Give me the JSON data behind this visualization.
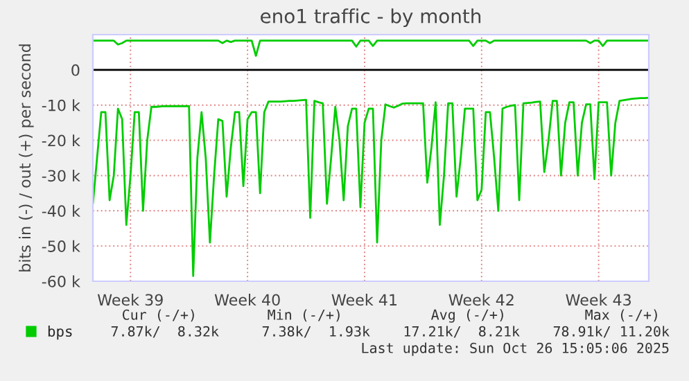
{
  "chart_data": {
    "type": "line",
    "title": "eno1 traffic - by month",
    "ylabel": "bits in (-) / out (+) per second",
    "categories": [
      null,
      null,
      null,
      null,
      null,
      null,
      null,
      null,
      null,
      "Week 39",
      null,
      null,
      null,
      null,
      null,
      null,
      null,
      null,
      null,
      null,
      null,
      null,
      null,
      null,
      null,
      null,
      null,
      null,
      null,
      null,
      null,
      null,
      null,
      null,
      null,
      null,
      null,
      "Week 40",
      null,
      null,
      null,
      null,
      null,
      null,
      null,
      null,
      null,
      null,
      null,
      null,
      null,
      null,
      null,
      null,
      null,
      null,
      null,
      null,
      null,
      null,
      null,
      null,
      null,
      null,
      null,
      "Week 41",
      null,
      null,
      null,
      null,
      null,
      null,
      null,
      null,
      null,
      null,
      null,
      null,
      null,
      null,
      null,
      null,
      null,
      null,
      null,
      null,
      null,
      null,
      null,
      null,
      null,
      null,
      null,
      "Week 42",
      null,
      null,
      null,
      null,
      null,
      null,
      null,
      null,
      null,
      null,
      null,
      null,
      null,
      null,
      null,
      null,
      null,
      null,
      null,
      null,
      null,
      null,
      null,
      null,
      null,
      null,
      null,
      "Week 43",
      null,
      null,
      null,
      null,
      null,
      null,
      null,
      null,
      null,
      null,
      null,
      null
    ],
    "series": [
      {
        "name": "bps",
        "color": "#00cc00",
        "values": [
          -38000,
          -25000,
          -12000,
          -12000,
          -37000,
          -30000,
          -11000,
          -14000,
          -44000,
          -30000,
          -12000,
          -12000,
          -40000,
          -20000,
          -10500,
          -10500,
          -10400,
          -10300,
          -10300,
          -10300,
          -10300,
          -10300,
          -10300,
          -10300,
          -58500,
          -25000,
          -12000,
          -25000,
          -49000,
          -30000,
          -14000,
          -14500,
          -36000,
          -22000,
          -12000,
          -12000,
          -33000,
          -14000,
          -12000,
          -12000,
          -35000,
          -12000,
          -9000,
          -9000,
          -9000,
          -9000,
          -8900,
          -8800,
          -8800,
          -8700,
          -8600,
          -8500,
          -42000,
          -8800,
          -9200,
          -9500,
          -38000,
          -25000,
          -10500,
          -20000,
          -37000,
          -16000,
          -11000,
          -11000,
          -39000,
          -15000,
          -11000,
          -11000,
          -49000,
          -20000,
          -9800,
          -10300,
          -10700,
          -10200,
          -9600,
          -9500,
          -9500,
          -9500,
          -9500,
          -9500,
          -32000,
          -22000,
          -9200,
          -44000,
          -30000,
          -9500,
          -9500,
          -36000,
          -25000,
          -11000,
          -11000,
          -11000,
          -37000,
          -34000,
          -12000,
          -12000,
          -25000,
          -40000,
          -11000,
          -10500,
          -10200,
          -10000,
          -37000,
          -9500,
          -9400,
          -9300,
          -9100,
          -9000,
          -29000,
          -20000,
          -8800,
          -8800,
          -30000,
          -15000,
          -9200,
          -9200,
          -30000,
          -15000,
          -9800,
          -9800,
          -31000,
          -9200,
          -9200,
          -9200,
          -30000,
          -15000,
          -8800,
          -8600,
          -8400,
          -8200,
          -8100,
          -8000,
          -8000,
          -7900
        ]
      },
      {
        "color": "#00cc00",
        "values": [
          8300,
          8300,
          8300,
          8300,
          8300,
          8300,
          7200,
          7600,
          8300,
          8300,
          8300,
          8300,
          8300,
          8300,
          8300,
          8300,
          8300,
          8300,
          8300,
          8300,
          8300,
          8300,
          8300,
          8300,
          8300,
          8300,
          8300,
          8300,
          8300,
          8300,
          8300,
          7600,
          8300,
          7900,
          8300,
          8300,
          8300,
          8300,
          8300,
          4000,
          8300,
          8300,
          8300,
          8300,
          8300,
          8300,
          8300,
          8300,
          8300,
          8300,
          8300,
          8300,
          8300,
          8300,
          8300,
          8300,
          8300,
          8300,
          8300,
          8300,
          8300,
          8300,
          8300,
          6600,
          8300,
          8300,
          8300,
          6800,
          8300,
          8300,
          8300,
          8300,
          8300,
          8300,
          8300,
          8300,
          8300,
          8300,
          8300,
          8300,
          8300,
          8300,
          8300,
          8300,
          8300,
          8300,
          8300,
          8300,
          8300,
          8300,
          8300,
          6800,
          8300,
          8300,
          8300,
          7600,
          8300,
          8300,
          8300,
          8300,
          8300,
          8300,
          8300,
          8300,
          8300,
          8300,
          8300,
          8300,
          8300,
          8300,
          8300,
          8300,
          8300,
          8300,
          8300,
          8300,
          8300,
          8300,
          8300,
          7600,
          8300,
          8300,
          6800,
          8300,
          8300,
          8300,
          8300,
          8300,
          8300,
          8300,
          8300,
          8300,
          8300,
          8300
        ]
      }
    ],
    "ylim": [
      -60000,
      10000
    ],
    "yticks": [
      {
        "value": -60000,
        "label": "-60 k"
      },
      {
        "value": -50000,
        "label": "-50 k"
      },
      {
        "value": -40000,
        "label": "-40 k"
      },
      {
        "value": -30000,
        "label": "-30 k"
      },
      {
        "value": -20000,
        "label": "-20 k"
      },
      {
        "value": -10000,
        "label": "-10 k"
      },
      0
    ],
    "ref_lines": [
      {
        "axis": "y",
        "value": 0,
        "color": "#000000"
      }
    ],
    "grid": true,
    "legend": "bottom",
    "annotations": [
      "Cur (-/+)",
      "Min (-/+)",
      "Avg (-/+)",
      "Max (-/+)",
      "7.87k/  8.32k",
      "7.38k/  1.93k",
      "17.21k/  8.21k",
      "78.91k/ 11.20k",
      "Last update: Sun Oct 26 15:05:06 2025"
    ]
  }
}
